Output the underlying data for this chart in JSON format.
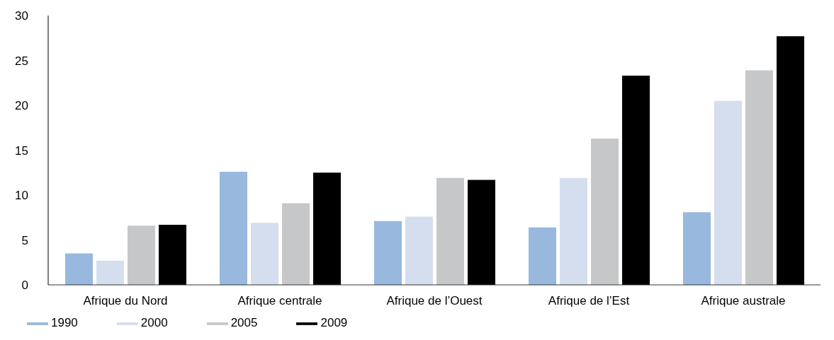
{
  "chart_data": {
    "type": "bar",
    "categories": [
      "Afrique du Nord",
      "Afrique centrale",
      "Afrique de l’Ouest",
      "Afrique de l’Est",
      "Afrique australe"
    ],
    "series": [
      {
        "name": "1990",
        "color": "#98b8de",
        "values": [
          3.5,
          12.6,
          7.1,
          6.4,
          8.1
        ]
      },
      {
        "name": "2000",
        "color": "#d5deee",
        "values": [
          2.7,
          6.9,
          7.6,
          11.9,
          20.5
        ]
      },
      {
        "name": "2005",
        "color": "#c6c7c8",
        "values": [
          6.6,
          9.1,
          11.9,
          16.3,
          23.9
        ]
      },
      {
        "name": "2009",
        "color": "#000000",
        "values": [
          6.7,
          12.5,
          11.7,
          23.3,
          27.7
        ]
      }
    ],
    "ylim": [
      0,
      30
    ],
    "yticks": [
      0,
      5,
      10,
      15,
      20,
      25,
      30
    ],
    "grid": false,
    "legend": "bottom left"
  }
}
